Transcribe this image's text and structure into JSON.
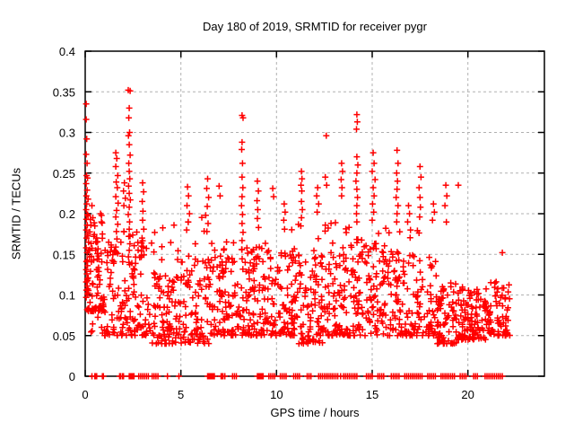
{
  "page": {
    "background": "#ffffff"
  },
  "chart_data": {
    "type": "scatter",
    "title": "Day 180 of 2019, SRMTID for receiver pygr",
    "xlabel": "GPS time / hours",
    "ylabel": "SRMTID / TECUs",
    "xlim": [
      0,
      24
    ],
    "ylim": [
      0,
      0.4
    ],
    "x_tick_values": [
      0,
      5,
      10,
      15,
      20
    ],
    "x_tick_labels": [
      "0",
      "5",
      "10",
      "15",
      "20"
    ],
    "y_tick_values": [
      0,
      0.05,
      0.1,
      0.15,
      0.2,
      0.25,
      0.3,
      0.35,
      0.4
    ],
    "y_tick_labels": [
      "0",
      "0.05",
      "0.1",
      "0.15",
      "0.2",
      "0.25",
      "0.3",
      "0.35",
      "0.4"
    ],
    "grid": true,
    "legend": false,
    "marker": {
      "shape": "plus",
      "color": "#ff0000",
      "size": 7
    },
    "grid_color": "#b0b0b0",
    "frame_color": "#000000",
    "points": [
      [
        0.05,
        0.335
      ],
      [
        0.05,
        0.316
      ],
      [
        0.08,
        0.292
      ],
      [
        0.05,
        0.273
      ],
      [
        0.1,
        0.262
      ],
      [
        0.07,
        0.247
      ],
      [
        0.12,
        0.244
      ],
      [
        0.05,
        0.237
      ],
      [
        0.1,
        0.229
      ],
      [
        0.06,
        0.222
      ],
      [
        0.15,
        0.218
      ],
      [
        0.08,
        0.212
      ],
      [
        0.05,
        0.205
      ],
      [
        0.12,
        0.199
      ],
      [
        0.06,
        0.193
      ],
      [
        0.1,
        0.186
      ],
      [
        0.05,
        0.18
      ],
      [
        0.14,
        0.175
      ],
      [
        0.07,
        0.17
      ],
      [
        0.18,
        0.165
      ],
      [
        0.05,
        0.158
      ],
      [
        0.1,
        0.152
      ],
      [
        0.22,
        0.147
      ],
      [
        0.06,
        0.141
      ],
      [
        0.12,
        0.136
      ],
      [
        0.05,
        0.131
      ],
      [
        0.09,
        0.126
      ],
      [
        0.16,
        0.121
      ],
      [
        0.05,
        0.116
      ],
      [
        0.11,
        0.111
      ],
      [
        0.06,
        0.106
      ],
      [
        0.13,
        0.101
      ],
      [
        0.05,
        0.097
      ],
      [
        0.35,
        0.21
      ],
      [
        0.4,
        0.195
      ],
      [
        0.5,
        0.185
      ],
      [
        0.45,
        0.172
      ],
      [
        0.6,
        0.165
      ],
      [
        0.55,
        0.155
      ],
      [
        0.7,
        0.148
      ],
      [
        0.8,
        0.2
      ],
      [
        0.85,
        0.19
      ],
      [
        0.9,
        0.175
      ],
      [
        1.6,
        0.275
      ],
      [
        1.65,
        0.268
      ],
      [
        1.6,
        0.258
      ],
      [
        1.7,
        0.247
      ],
      [
        1.62,
        0.239
      ],
      [
        1.68,
        0.232
      ],
      [
        1.6,
        0.221
      ],
      [
        1.72,
        0.213
      ],
      [
        1.64,
        0.204
      ],
      [
        1.6,
        0.196
      ],
      [
        1.7,
        0.187
      ],
      [
        1.63,
        0.178
      ],
      [
        1.66,
        0.169
      ],
      [
        1.6,
        0.159
      ],
      [
        1.7,
        0.151
      ],
      [
        2.25,
        0.352
      ],
      [
        2.35,
        0.351
      ],
      [
        2.3,
        0.33
      ],
      [
        2.28,
        0.318
      ],
      [
        2.32,
        0.3
      ],
      [
        2.26,
        0.296
      ],
      [
        2.3,
        0.285
      ],
      [
        2.35,
        0.272
      ],
      [
        2.28,
        0.262
      ],
      [
        2.3,
        0.252
      ],
      [
        2.33,
        0.243
      ],
      [
        2.27,
        0.234
      ],
      [
        2.3,
        0.225
      ],
      [
        2.36,
        0.217
      ],
      [
        2.3,
        0.208
      ],
      [
        2.25,
        0.199
      ],
      [
        2.32,
        0.19
      ],
      [
        2.3,
        0.181
      ],
      [
        2.28,
        0.172
      ],
      [
        2.34,
        0.163
      ],
      [
        2.3,
        0.155
      ],
      [
        2.26,
        0.147
      ],
      [
        2.05,
        0.238
      ],
      [
        2.0,
        0.228
      ],
      [
        2.1,
        0.219
      ],
      [
        2.02,
        0.21
      ],
      [
        3.0,
        0.238
      ],
      [
        3.05,
        0.227
      ],
      [
        2.98,
        0.215
      ],
      [
        3.02,
        0.203
      ],
      [
        3.0,
        0.192
      ],
      [
        3.06,
        0.181
      ],
      [
        2.97,
        0.17
      ],
      [
        3.03,
        0.159
      ],
      [
        5.35,
        0.233
      ],
      [
        5.4,
        0.222
      ],
      [
        5.32,
        0.21
      ],
      [
        5.45,
        0.2
      ],
      [
        5.38,
        0.19
      ],
      [
        5.3,
        0.18
      ],
      [
        6.4,
        0.243
      ],
      [
        6.35,
        0.231
      ],
      [
        6.45,
        0.22
      ],
      [
        6.38,
        0.209
      ],
      [
        6.3,
        0.198
      ],
      [
        6.42,
        0.188
      ],
      [
        6.36,
        0.178
      ],
      [
        7.0,
        0.234
      ],
      [
        7.05,
        0.222
      ],
      [
        8.2,
        0.321
      ],
      [
        8.25,
        0.318
      ],
      [
        8.2,
        0.288
      ],
      [
        8.18,
        0.279
      ],
      [
        8.22,
        0.262
      ],
      [
        8.2,
        0.245
      ],
      [
        8.24,
        0.232
      ],
      [
        8.2,
        0.221
      ],
      [
        8.17,
        0.21
      ],
      [
        8.22,
        0.199
      ],
      [
        8.2,
        0.188
      ],
      [
        8.25,
        0.177
      ],
      [
        8.2,
        0.167
      ],
      [
        8.18,
        0.156
      ],
      [
        9.0,
        0.24
      ],
      [
        9.05,
        0.228
      ],
      [
        8.98,
        0.216
      ],
      [
        9.02,
        0.205
      ],
      [
        9.0,
        0.194
      ],
      [
        9.06,
        0.183
      ],
      [
        9.8,
        0.231
      ],
      [
        9.85,
        0.221
      ],
      [
        10.4,
        0.212
      ],
      [
        10.45,
        0.202
      ],
      [
        10.38,
        0.192
      ],
      [
        10.42,
        0.181
      ],
      [
        11.3,
        0.252
      ],
      [
        11.33,
        0.243
      ],
      [
        11.28,
        0.235
      ],
      [
        11.32,
        0.228
      ],
      [
        11.3,
        0.215
      ],
      [
        11.35,
        0.205
      ],
      [
        11.3,
        0.195
      ],
      [
        11.27,
        0.185
      ],
      [
        12.15,
        0.232
      ],
      [
        12.1,
        0.222
      ],
      [
        12.2,
        0.212
      ],
      [
        12.12,
        0.202
      ],
      [
        12.6,
        0.296
      ],
      [
        12.55,
        0.245
      ],
      [
        12.62,
        0.235
      ],
      [
        13.4,
        0.262
      ],
      [
        13.45,
        0.252
      ],
      [
        13.38,
        0.242
      ],
      [
        13.42,
        0.232
      ],
      [
        13.4,
        0.222
      ],
      [
        14.2,
        0.322
      ],
      [
        14.22,
        0.313
      ],
      [
        14.18,
        0.304
      ],
      [
        14.2,
        0.27
      ],
      [
        14.25,
        0.26
      ],
      [
        14.2,
        0.25
      ],
      [
        14.15,
        0.24
      ],
      [
        14.2,
        0.23
      ],
      [
        14.23,
        0.22
      ],
      [
        14.2,
        0.21
      ],
      [
        14.18,
        0.2
      ],
      [
        14.2,
        0.19
      ],
      [
        15.05,
        0.275
      ],
      [
        15.1,
        0.262
      ],
      [
        15.0,
        0.252
      ],
      [
        15.15,
        0.242
      ],
      [
        15.05,
        0.232
      ],
      [
        15.1,
        0.222
      ],
      [
        15.02,
        0.212
      ],
      [
        15.08,
        0.202
      ],
      [
        15.0,
        0.192
      ],
      [
        16.3,
        0.278
      ],
      [
        16.35,
        0.262
      ],
      [
        16.28,
        0.25
      ],
      [
        16.32,
        0.24
      ],
      [
        16.3,
        0.23
      ],
      [
        16.25,
        0.22
      ],
      [
        16.35,
        0.21
      ],
      [
        16.3,
        0.2
      ],
      [
        16.28,
        0.19
      ],
      [
        16.9,
        0.21
      ],
      [
        16.95,
        0.2
      ],
      [
        16.85,
        0.19
      ],
      [
        17.0,
        0.18
      ],
      [
        17.5,
        0.258
      ],
      [
        17.55,
        0.245
      ],
      [
        17.45,
        0.232
      ],
      [
        17.5,
        0.22
      ],
      [
        17.52,
        0.208
      ],
      [
        17.48,
        0.196
      ],
      [
        18.2,
        0.212
      ],
      [
        18.25,
        0.202
      ],
      [
        18.15,
        0.192
      ],
      [
        18.85,
        0.235
      ],
      [
        18.9,
        0.222
      ],
      [
        18.8,
        0.21
      ],
      [
        19.5,
        0.235
      ],
      [
        21.8,
        0.152
      ]
    ],
    "baseline_x": [
      0.35,
      0.5,
      0.55,
      0.6,
      0.9,
      0.95,
      1.8,
      1.85,
      1.95,
      2.0,
      2.3,
      2.35,
      2.4,
      2.45,
      2.5,
      2.55,
      2.8,
      2.9,
      3.0,
      3.1,
      3.2,
      3.3,
      3.5,
      3.6,
      3.7,
      3.8,
      4.3,
      4.9,
      6.4,
      6.45,
      6.5,
      6.55,
      6.6,
      6.65,
      6.7,
      6.75,
      7.1,
      7.15,
      7.2,
      7.3,
      7.7,
      7.8,
      7.9,
      9.0,
      9.05,
      9.1,
      9.15,
      9.2,
      9.25,
      9.3,
      9.6,
      9.7,
      9.8,
      9.9,
      10.2,
      10.3,
      10.4,
      10.5,
      10.9,
      11.0,
      11.1,
      11.2,
      11.6,
      11.7,
      11.8,
      12.2,
      12.3,
      12.4,
      12.5,
      12.6,
      12.7,
      12.8,
      12.9,
      13.0,
      13.1,
      13.2,
      13.35,
      13.5,
      13.6,
      13.7,
      13.8,
      13.9,
      14.0,
      14.1,
      14.2,
      14.7,
      14.8,
      14.9,
      15.0,
      15.3,
      15.4,
      15.5,
      15.6,
      16.0,
      16.1,
      16.2,
      16.3,
      16.4,
      16.7,
      16.8,
      16.9,
      17.0,
      17.1,
      17.2,
      17.3,
      17.4,
      17.5,
      17.6,
      17.9,
      18.0,
      18.1,
      18.2,
      18.3,
      18.6,
      18.7,
      18.8,
      18.9,
      19.0,
      19.1,
      19.2,
      19.3,
      19.6,
      19.7,
      19.8,
      19.9,
      20.3,
      20.4,
      20.5,
      20.9,
      21.0,
      21.1,
      21.2,
      21.3,
      21.4,
      21.5,
      21.6,
      21.7,
      21.8
    ],
    "cloud_seed": 20190180,
    "cloud_bias": 1.7,
    "cloud_clusters": [
      [
        0.1,
        1.0,
        0.08,
        0.2,
        60
      ],
      [
        0.3,
        2.0,
        0.05,
        0.17,
        80
      ],
      [
        2.0,
        3.5,
        0.05,
        0.18,
        85
      ],
      [
        3.5,
        5.0,
        0.04,
        0.13,
        95
      ],
      [
        5.0,
        6.5,
        0.04,
        0.15,
        85
      ],
      [
        6.5,
        8.0,
        0.05,
        0.17,
        95
      ],
      [
        8.0,
        9.5,
        0.05,
        0.16,
        95
      ],
      [
        9.5,
        11.0,
        0.05,
        0.16,
        95
      ],
      [
        11.0,
        12.5,
        0.04,
        0.17,
        90
      ],
      [
        12.5,
        14.0,
        0.05,
        0.16,
        85
      ],
      [
        14.0,
        15.5,
        0.05,
        0.17,
        85
      ],
      [
        15.5,
        16.6,
        0.05,
        0.18,
        70
      ],
      [
        16.5,
        18.4,
        0.05,
        0.15,
        95
      ],
      [
        18.4,
        19.4,
        0.04,
        0.12,
        70
      ],
      [
        19.4,
        21.0,
        0.045,
        0.11,
        120
      ],
      [
        21.0,
        22.2,
        0.05,
        0.12,
        70
      ],
      [
        0.2,
        12.0,
        0.14,
        0.2,
        45
      ],
      [
        12.0,
        19.0,
        0.13,
        0.19,
        35
      ]
    ]
  }
}
